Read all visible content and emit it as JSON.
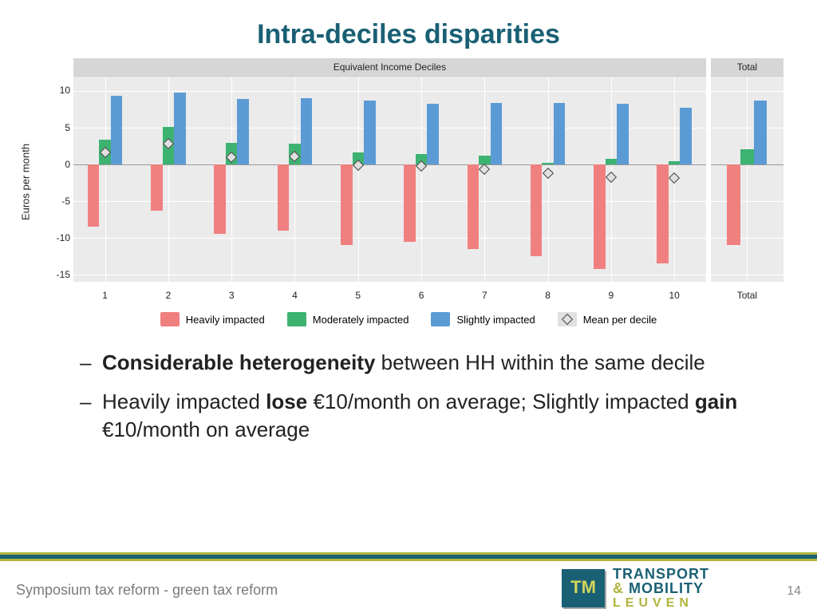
{
  "title": "Intra-deciles disparities",
  "chart": {
    "type": "bar",
    "ylabel": "Euros per month",
    "ylim": [
      -16,
      12
    ],
    "yticks": [
      -15,
      -10,
      -5,
      0,
      5,
      10
    ],
    "panel_main_title": "Equivalent Income Deciles",
    "panel_total_title": "Total",
    "categories": [
      "1",
      "2",
      "3",
      "4",
      "5",
      "6",
      "7",
      "8",
      "9",
      "10"
    ],
    "series": [
      {
        "name": "Heavily impacted",
        "color": "#f08080",
        "values": [
          -8.5,
          -6.3,
          -9.5,
          -9.0,
          -11.0,
          -10.5,
          -11.5,
          -12.5,
          -14.3,
          -13.5
        ],
        "total": -11.0
      },
      {
        "name": "Moderately impacted",
        "color": "#3cb371",
        "values": [
          3.4,
          5.1,
          3.0,
          2.8,
          1.7,
          1.4,
          1.2,
          0.2,
          0.8,
          0.4
        ],
        "total": 2.1
      },
      {
        "name": "Slightly impacted",
        "color": "#5b9bd5",
        "values": [
          9.4,
          9.8,
          9.0,
          9.1,
          8.7,
          8.3,
          8.4,
          8.4,
          8.3,
          7.8
        ],
        "total": 8.7
      }
    ],
    "mean_per_decile": {
      "label": "Mean per decile",
      "values": [
        1.6,
        2.9,
        1.0,
        1.1,
        -0.1,
        -0.2,
        -0.6,
        -1.2,
        -1.7,
        -1.8
      ]
    },
    "background_color": "#ebebeb",
    "grid_color": "#ffffff",
    "marker_fill": "#e0e0e0",
    "marker_stroke": "#444444",
    "bar_group_width": 0.55,
    "label_fontsize": 13
  },
  "legend": {
    "items": [
      "Heavily impacted",
      "Moderately impacted",
      "Slightly impacted",
      "Mean per decile"
    ]
  },
  "bullets": [
    {
      "parts": [
        {
          "t": "Considerable heterogeneity ",
          "b": true
        },
        {
          "t": "between HH within the same decile",
          "b": false
        }
      ]
    },
    {
      "parts": [
        {
          "t": "Heavily impacted ",
          "b": false
        },
        {
          "t": "lose ",
          "b": true
        },
        {
          "t": "€10/month on average; Slightly impacted ",
          "b": false
        },
        {
          "t": "gain ",
          "b": true
        },
        {
          "t": "€10/month on average",
          "b": false
        }
      ]
    }
  ],
  "footer": {
    "text": "Symposium tax reform - green tax reform",
    "page": "14",
    "logo_line1a": "TRANSPORT",
    "logo_line1b": "MOBILITY",
    "logo_line2": "LEUVEN",
    "colors": {
      "teal": "#1a6074",
      "olive": "#b0b43c"
    }
  }
}
